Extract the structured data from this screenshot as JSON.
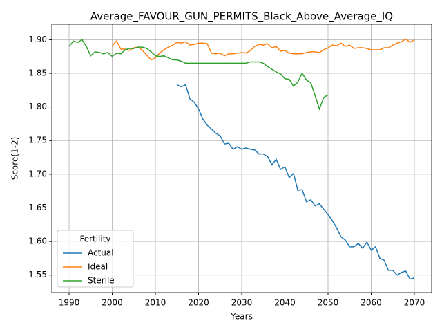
{
  "chart_data": {
    "type": "line",
    "title": "Average_FAVOUR_GUN_PERMITS_Black_Above_Average_IQ",
    "x_label": "Years",
    "y_label": "Score(1-2)",
    "x": [
      1990,
      1991,
      1992,
      1993,
      1994,
      1995,
      1996,
      1997,
      1998,
      1999,
      2000,
      2001,
      2002,
      2003,
      2004,
      2005,
      2006,
      2007,
      2008,
      2009,
      2010,
      2011,
      2012,
      2013,
      2014,
      2015,
      2016,
      2017,
      2018,
      2019,
      2020,
      2021,
      2022,
      2023,
      2024,
      2025,
      2026,
      2027,
      2028,
      2029,
      2030,
      2031,
      2032,
      2033,
      2034,
      2035,
      2036,
      2037,
      2038,
      2039,
      2040,
      2041,
      2042,
      2043,
      2044,
      2045,
      2046,
      2047,
      2048,
      2049,
      2050,
      2051,
      2052,
      2053,
      2054,
      2055,
      2056,
      2057,
      2058,
      2059,
      2060,
      2061,
      2062,
      2063,
      2064,
      2065,
      2066,
      2067,
      2068,
      2069,
      2070
    ],
    "series": [
      {
        "name": "Actual",
        "color": "#1f77b4",
        "values": [
          null,
          null,
          null,
          null,
          null,
          null,
          null,
          null,
          null,
          null,
          null,
          null,
          null,
          null,
          null,
          null,
          null,
          null,
          null,
          null,
          null,
          null,
          null,
          null,
          null,
          1.833,
          1.83,
          1.833,
          1.812,
          1.807,
          1.797,
          1.782,
          1.773,
          1.767,
          1.761,
          1.757,
          1.745,
          1.746,
          1.737,
          1.741,
          1.737,
          1.739,
          1.737,
          1.736,
          1.73,
          1.73,
          1.726,
          1.714,
          1.722,
          1.707,
          1.711,
          1.695,
          1.701,
          1.676,
          1.677,
          1.659,
          1.662,
          1.653,
          1.656,
          1.648,
          1.64,
          1.631,
          1.62,
          1.607,
          1.602,
          1.592,
          1.592,
          1.597,
          1.59,
          1.599,
          1.587,
          1.592,
          1.575,
          1.572,
          1.557,
          1.557,
          1.55,
          1.554,
          1.556,
          1.544,
          1.546
        ]
      },
      {
        "name": "Ideal",
        "color": "#ff7f0e",
        "values": [
          null,
          null,
          null,
          null,
          null,
          null,
          null,
          null,
          null,
          null,
          1.891,
          1.898,
          1.886,
          1.886,
          1.884,
          1.888,
          1.889,
          1.884,
          1.877,
          1.87,
          1.873,
          1.88,
          1.885,
          1.889,
          1.892,
          1.896,
          1.895,
          1.897,
          1.892,
          1.893,
          1.895,
          1.895,
          1.894,
          1.88,
          1.879,
          1.88,
          1.876,
          1.879,
          1.879,
          1.88,
          1.881,
          1.88,
          1.884,
          1.89,
          1.893,
          1.892,
          1.894,
          1.888,
          1.89,
          1.883,
          1.884,
          1.88,
          1.879,
          1.879,
          1.879,
          1.881,
          1.882,
          1.882,
          1.881,
          1.885,
          1.888,
          1.892,
          1.891,
          1.895,
          1.89,
          1.892,
          1.887,
          1.888,
          1.888,
          1.887,
          1.885,
          1.885,
          1.885,
          1.888,
          1.888,
          1.892,
          1.895,
          1.897,
          1.901,
          1.896,
          1.9
        ]
      },
      {
        "name": "Sterile",
        "color": "#2ca02c",
        "values": [
          1.89,
          1.898,
          1.896,
          1.9,
          1.89,
          1.876,
          1.882,
          1.881,
          1.879,
          1.881,
          1.875,
          1.88,
          1.879,
          1.885,
          1.887,
          1.887,
          1.889,
          1.889,
          1.887,
          1.882,
          1.876,
          1.875,
          1.876,
          1.873,
          1.87,
          1.87,
          1.868,
          1.865,
          1.865,
          1.865,
          1.865,
          1.865,
          1.865,
          1.865,
          1.865,
          1.865,
          1.865,
          1.865,
          1.865,
          1.865,
          1.865,
          1.865,
          1.867,
          1.867,
          1.867,
          1.865,
          1.86,
          1.856,
          1.852,
          1.849,
          1.842,
          1.841,
          1.831,
          1.837,
          1.85,
          1.84,
          1.836,
          1.817,
          1.797,
          1.814,
          1.818,
          null,
          null,
          null,
          null,
          null,
          null,
          null,
          null,
          null,
          null,
          null,
          null,
          null,
          null,
          null,
          null,
          null,
          null,
          null,
          null
        ]
      }
    ],
    "xlim": [
      1986,
      2074
    ],
    "ylim": [
      1.524,
      1.923
    ],
    "xticks": [
      1990,
      2000,
      2010,
      2020,
      2030,
      2040,
      2050,
      2060,
      2070
    ],
    "yticks": [
      1.55,
      {
        "value": 1.6,
        "label": "1.60"
      },
      1.65,
      {
        "value": 1.7,
        "label": "1.70"
      },
      1.75,
      {
        "value": 1.8,
        "label": "1.80"
      },
      1.85,
      {
        "value": 1.9,
        "label": "1.90"
      }
    ],
    "grid": true,
    "legend_title": "Fertility",
    "legend_position": "lower-left"
  }
}
